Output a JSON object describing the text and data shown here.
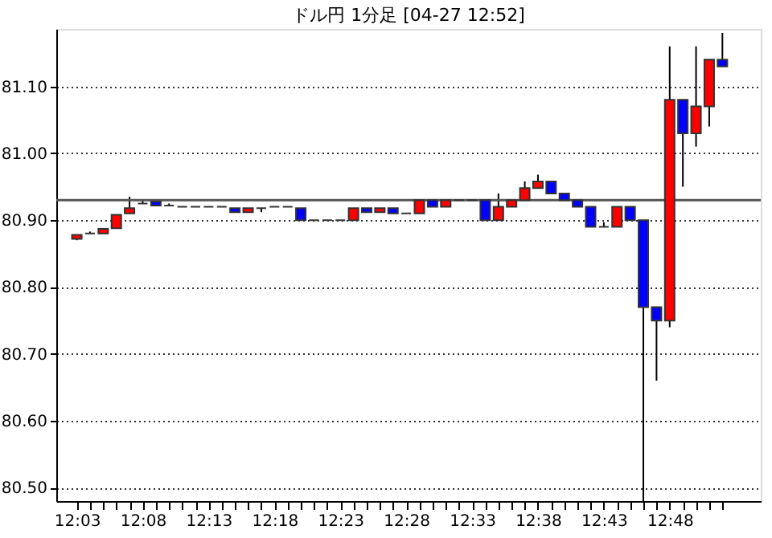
{
  "chart_data": {
    "type": "candlestick",
    "title": "ドル円 1分足 [04-27 12:52]",
    "categories": [
      "12:03",
      null,
      null,
      null,
      null,
      "12:08",
      null,
      null,
      null,
      null,
      "12:13",
      null,
      null,
      null,
      null,
      "12:18",
      null,
      null,
      null,
      null,
      "12:23",
      null,
      null,
      null,
      null,
      "12:28",
      null,
      null,
      null,
      null,
      "12:33",
      null,
      null,
      null,
      null,
      "12:38",
      null,
      null,
      null,
      null,
      "12:43",
      null,
      null,
      null,
      null,
      "12:48",
      null,
      null,
      null,
      null
    ],
    "ohlc": [
      [
        80.872,
        80.878,
        80.87,
        80.878
      ],
      [
        80.88,
        80.883,
        80.88,
        80.88
      ],
      [
        80.88,
        80.887,
        80.88,
        80.887
      ],
      [
        80.888,
        80.908,
        80.888,
        80.908
      ],
      [
        80.91,
        80.935,
        80.91,
        80.918
      ],
      [
        80.925,
        80.93,
        80.925,
        80.925
      ],
      [
        80.928,
        80.928,
        80.922,
        80.922
      ],
      [
        80.922,
        80.925,
        80.922,
        80.922
      ],
      [
        80.92,
        80.92,
        80.92,
        80.92
      ],
      [
        80.92,
        80.92,
        80.92,
        80.92
      ],
      [
        80.92,
        80.92,
        80.92,
        80.92
      ],
      [
        80.92,
        80.92,
        80.92,
        80.92
      ],
      [
        80.918,
        80.918,
        80.912,
        80.912
      ],
      [
        80.912,
        80.918,
        80.912,
        80.918
      ],
      [
        80.918,
        80.918,
        80.912,
        80.918
      ],
      [
        80.92,
        80.92,
        80.92,
        80.92
      ],
      [
        80.92,
        80.92,
        80.92,
        80.92
      ],
      [
        80.918,
        80.918,
        80.9,
        80.9
      ],
      [
        80.9,
        80.9,
        80.9,
        80.9
      ],
      [
        80.9,
        80.9,
        80.9,
        80.9
      ],
      [
        80.9,
        80.9,
        80.9,
        80.9
      ],
      [
        80.9,
        80.918,
        80.9,
        80.918
      ],
      [
        80.918,
        80.918,
        80.912,
        80.912
      ],
      [
        80.912,
        80.918,
        80.912,
        80.918
      ],
      [
        80.918,
        80.918,
        80.91,
        80.91
      ],
      [
        80.91,
        80.91,
        80.91,
        80.91
      ],
      [
        80.91,
        80.93,
        80.91,
        80.93
      ],
      [
        80.93,
        80.93,
        80.92,
        80.92
      ],
      [
        80.92,
        80.93,
        80.92,
        80.93
      ],
      [
        80.93,
        80.93,
        80.93,
        80.93
      ],
      [
        80.93,
        80.93,
        80.93,
        80.93
      ],
      [
        80.93,
        80.93,
        80.9,
        80.9
      ],
      [
        80.9,
        80.94,
        80.9,
        80.92
      ],
      [
        80.92,
        80.93,
        80.92,
        80.93
      ],
      [
        80.93,
        80.958,
        80.93,
        80.948
      ],
      [
        80.948,
        80.968,
        80.948,
        80.958
      ],
      [
        80.958,
        80.958,
        80.94,
        80.94
      ],
      [
        80.94,
        80.94,
        80.93,
        80.93
      ],
      [
        80.93,
        80.93,
        80.92,
        80.92
      ],
      [
        80.92,
        80.92,
        80.89,
        80.89
      ],
      [
        80.89,
        80.897,
        80.89,
        80.89
      ],
      [
        80.89,
        80.92,
        80.89,
        80.92
      ],
      [
        80.92,
        80.92,
        80.9,
        80.9
      ],
      [
        80.9,
        80.9,
        80.48,
        80.77
      ],
      [
        80.77,
        80.77,
        80.66,
        80.75
      ],
      [
        80.75,
        81.16,
        80.74,
        81.08
      ],
      [
        81.08,
        81.08,
        80.95,
        81.03
      ],
      [
        81.03,
        81.16,
        81.01,
        81.07
      ],
      [
        81.07,
        81.14,
        81.04,
        81.14
      ],
      [
        81.14,
        81.18,
        81.13,
        81.13
      ]
    ],
    "colors": [
      "#ff0000",
      "#333333",
      "#ff0000",
      "#ff0000",
      "#ff0000",
      "#333333",
      "#0000ff",
      "#333333",
      "#333333",
      "#333333",
      "#333333",
      "#333333",
      "#0000ff",
      "#ff0000",
      "#333333",
      "#333333",
      "#333333",
      "#0000ff",
      "#333333",
      "#333333",
      "#333333",
      "#ff0000",
      "#0000ff",
      "#ff0000",
      "#0000ff",
      "#333333",
      "#ff0000",
      "#0000ff",
      "#ff0000",
      "#333333",
      "#333333",
      "#0000ff",
      "#ff0000",
      "#ff0000",
      "#ff0000",
      "#ff0000",
      "#0000ff",
      "#0000ff",
      "#0000ff",
      "#0000ff",
      "#333333",
      "#ff0000",
      "#0000ff",
      "#0000ff",
      "#0000ff",
      "#ff0000",
      "#0000ff",
      "#ff0000",
      "#ff0000",
      "#0000ff"
    ],
    "ylim": [
      80.48,
      81.186
    ],
    "yticks": [
      {
        "value": 80.5,
        "label": "80.50"
      },
      {
        "value": 80.6,
        "label": "80.60"
      },
      {
        "value": 80.7,
        "label": "80.70"
      },
      {
        "value": 80.8,
        "label": "80.80"
      },
      {
        "value": 80.9,
        "label": "80.90"
      },
      {
        "value": 81.0,
        "label": "81.00"
      },
      {
        "value": 81.1,
        "label": "81.10"
      }
    ],
    "grid": "y",
    "ref_lines": [
      {
        "axis": "y",
        "value": 80.93,
        "color": "#555555"
      }
    ]
  }
}
